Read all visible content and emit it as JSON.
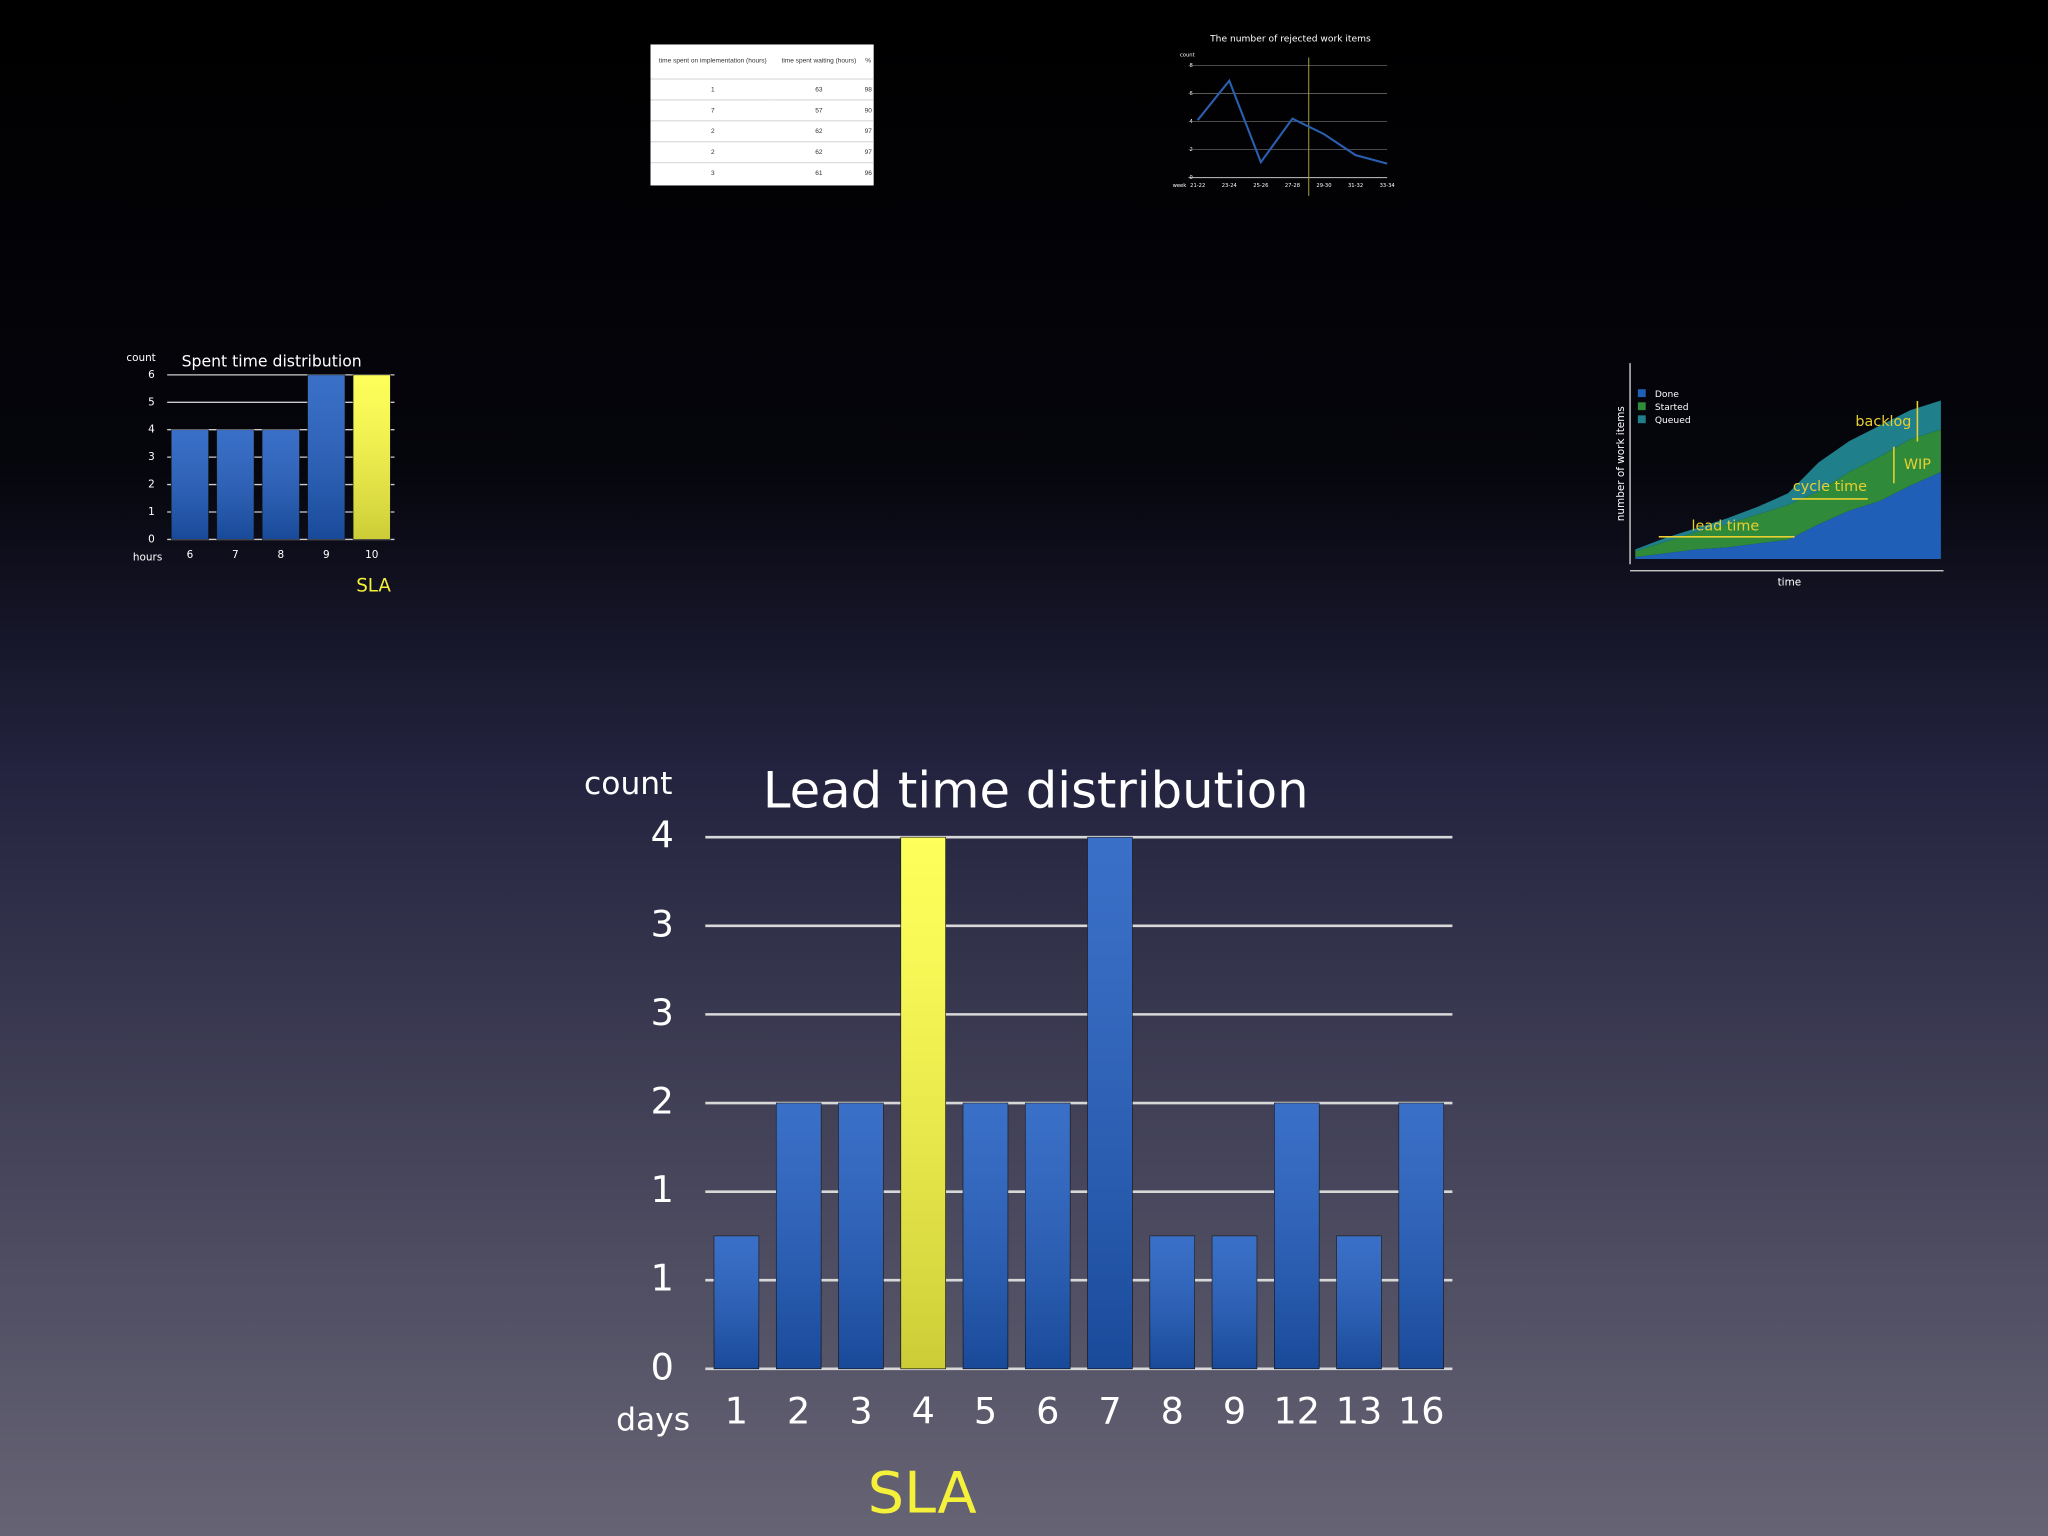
{
  "chart_data": [
    {
      "type": "bar",
      "title": "Lead time distribution",
      "ylabel": "count",
      "xlabel": "days",
      "annotation": "SLA",
      "categories": [
        "1",
        "2",
        "3",
        "4",
        "5",
        "6",
        "7",
        "8",
        "9",
        "12",
        "13",
        "16"
      ],
      "values": [
        1,
        2,
        2,
        4,
        2,
        2,
        4,
        1,
        1,
        2,
        1,
        2
      ],
      "colors": [
        "#1f5cc0",
        "#1f5cc0",
        "#1f5cc0",
        "#ffff44",
        "#1f5cc0",
        "#1f5cc0",
        "#1f5cc0",
        "#1f5cc0",
        "#1f5cc0",
        "#1f5cc0",
        "#1f5cc0",
        "#1f5cc0"
      ],
      "ylim": [
        0,
        4
      ],
      "yticks": [
        0,
        {
          "value": 0.667,
          "label": "1"
        },
        {
          "value": 1.333,
          "label": "1"
        },
        2,
        {
          "value": 2.667,
          "label": "3"
        },
        {
          "value": 3.333,
          "label": "3"
        },
        4
      ],
      "grid": true
    },
    {
      "type": "bar",
      "title": "Spent time distribution",
      "ylabel": "count",
      "xlabel": "hours",
      "annotation": "SLA",
      "categories": [
        "6",
        "7",
        "8",
        "9",
        "10"
      ],
      "values": [
        4,
        4,
        4,
        6,
        6
      ],
      "colors": [
        "#1f5cc0",
        "#1f5cc0",
        "#1f5cc0",
        "#1f5cc0",
        "#ffff44"
      ],
      "ylim": [
        0,
        6
      ],
      "yticks": [
        0,
        1,
        2,
        3,
        4,
        5,
        6
      ],
      "grid": true
    },
    {
      "type": "line",
      "title": "The number of rejected work items",
      "ylabel": "count",
      "xlabel": "week",
      "categories": [
        "21-22",
        "23-24",
        "25-26",
        "27-28",
        "29-30",
        "31-32",
        "33-34"
      ],
      "values": [
        4.1,
        6.9,
        1.1,
        4.2,
        3.1,
        1.6,
        1.0
      ],
      "color": "#2a5fb0",
      "ylim": [
        0,
        8
      ],
      "yticks": [
        0,
        2,
        4,
        6,
        8
      ],
      "grid": true
    },
    {
      "type": "area",
      "ylabel": "number of work items",
      "xlabel": "time",
      "annotations": [
        "backlog",
        "WIP",
        "cycle time",
        "lead time"
      ],
      "series": [
        {
          "name": "Done",
          "color": "#1f5fb8",
          "values": [
            0.1,
            0.3,
            0.5,
            0.6,
            0.8,
            1,
            1.8,
            2.5,
            3,
            3.8,
            4.5
          ]
        },
        {
          "name": "Started",
          "color": "#2f8a3a",
          "values": [
            0.3,
            0.6,
            0.9,
            1.2,
            1.5,
            1.8,
            1.7,
            2,
            2.3,
            2.4,
            2.2
          ]
        },
        {
          "name": "Queued",
          "color": "#1f7f8a",
          "values": [
            0.1,
            0.2,
            0.2,
            0.3,
            0.4,
            0.6,
            1.5,
            1.6,
            1.6,
            1.5,
            1.5
          ]
        }
      ],
      "ylim": [
        0,
        10
      ]
    }
  ],
  "table": {
    "header": [
      "time spent on implementation (hours)",
      "time spent waiting (hours)",
      "%"
    ],
    "rows": [
      [
        1,
        63,
        98
      ],
      [
        7,
        57,
        90
      ],
      [
        2,
        62,
        97
      ],
      [
        2,
        62,
        97
      ],
      [
        3,
        61,
        96
      ]
    ]
  }
}
